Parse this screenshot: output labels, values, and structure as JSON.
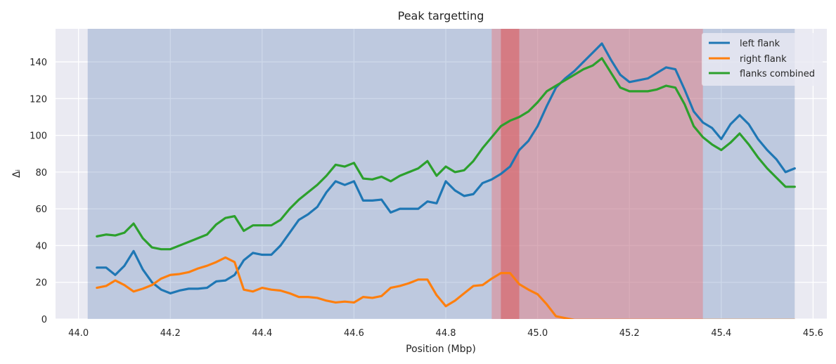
{
  "chart_data": {
    "type": "line",
    "title": "Peak targetting",
    "xlabel": "Position (Mbp)",
    "ylabel": "Δᵢ",
    "xlim": [
      43.95,
      45.63
    ],
    "ylim": [
      0,
      158
    ],
    "xticks": [
      44.0,
      44.2,
      44.4,
      44.6,
      44.8,
      45.0,
      45.2,
      45.4,
      45.6
    ],
    "xtick_labels": [
      "44.0",
      "44.2",
      "44.4",
      "44.6",
      "44.8",
      "45.0",
      "45.2",
      "45.4",
      "45.6"
    ],
    "yticks": [
      0,
      20,
      40,
      60,
      80,
      100,
      120,
      140
    ],
    "ytick_labels": [
      "0",
      "20",
      "40",
      "60",
      "80",
      "100",
      "120",
      "140"
    ],
    "grid": true,
    "legend_position": "top-right",
    "regions": [
      {
        "x0": 44.02,
        "x1": 45.56,
        "color": "#4c72b0",
        "opacity": 0.28
      },
      {
        "x0": 44.9,
        "x1": 45.36,
        "color": "#e8777c",
        "opacity": 0.45
      },
      {
        "x0": 44.92,
        "x1": 44.96,
        "color": "#d9595c",
        "opacity": 0.55
      }
    ],
    "x": [
      44.04,
      44.06,
      44.08,
      44.1,
      44.12,
      44.14,
      44.16,
      44.18,
      44.2,
      44.22,
      44.24,
      44.26,
      44.28,
      44.3,
      44.32,
      44.34,
      44.36,
      44.38,
      44.4,
      44.42,
      44.44,
      44.46,
      44.48,
      44.5,
      44.52,
      44.54,
      44.56,
      44.58,
      44.6,
      44.62,
      44.64,
      44.66,
      44.68,
      44.7,
      44.72,
      44.74,
      44.76,
      44.78,
      44.8,
      44.82,
      44.84,
      44.86,
      44.88,
      44.9,
      44.92,
      44.94,
      44.96,
      44.98,
      45.0,
      45.02,
      45.04,
      45.06,
      45.08,
      45.1,
      45.12,
      45.14,
      45.16,
      45.18,
      45.2,
      45.22,
      45.24,
      45.26,
      45.28,
      45.3,
      45.32,
      45.34,
      45.36,
      45.38,
      45.4,
      45.42,
      45.44,
      45.46,
      45.48,
      45.5,
      45.52,
      45.54,
      45.56
    ],
    "series": [
      {
        "name": "left flank",
        "color": "#1f77b4",
        "values": [
          28,
          28,
          24,
          29,
          37,
          27,
          20,
          16,
          14,
          15.5,
          16.5,
          16.5,
          17,
          20.5,
          21,
          24,
          32,
          36,
          35,
          35,
          40,
          47,
          54,
          57,
          61,
          69,
          75,
          73,
          75,
          64.5,
          64.5,
          65,
          58,
          60,
          60,
          60,
          64,
          63,
          75,
          70,
          67,
          68,
          74,
          76,
          79,
          83,
          92,
          97,
          105,
          116,
          126,
          131,
          135,
          140,
          145,
          150,
          141,
          133,
          129,
          130,
          131,
          134,
          137,
          136,
          125,
          113,
          107,
          104,
          98,
          106,
          111,
          106,
          98,
          92,
          87,
          80,
          82
        ]
      },
      {
        "name": "right flank",
        "color": "#ff7f0e",
        "values": [
          17,
          18,
          21,
          18.5,
          15,
          16.5,
          18.5,
          22,
          24,
          24.5,
          25.5,
          27.5,
          29,
          31,
          33.5,
          31,
          16,
          15,
          17,
          16,
          15.5,
          14,
          12,
          12,
          11.5,
          10,
          9,
          9.5,
          9,
          12,
          11.5,
          12.5,
          17,
          18,
          19.5,
          21.5,
          21.5,
          13,
          7,
          10,
          14,
          18,
          18.5,
          22,
          25,
          25,
          19,
          16,
          13.5,
          8,
          1.5,
          0.5,
          -0.5,
          -0.5,
          -0.5,
          -0.5,
          -0.5,
          -0.5,
          -0.5,
          -0.5,
          -0.5,
          -0.5,
          -0.5,
          -0.5,
          -0.5,
          -0.5,
          -0.5,
          -0.5,
          -0.5,
          -0.5,
          -0.5,
          -0.5,
          -0.5,
          -0.5,
          -0.5,
          -0.5,
          -0.5
        ]
      },
      {
        "name": "flanks combined",
        "color": "#2ca02c",
        "values": [
          45,
          46,
          45.5,
          47,
          52,
          44,
          39,
          38,
          38,
          40,
          42,
          44,
          46,
          51.5,
          55,
          56,
          48,
          51,
          51,
          51,
          54,
          60,
          65,
          69,
          73,
          78,
          84,
          83,
          85,
          76.5,
          76,
          77.5,
          75,
          78,
          80,
          82,
          86,
          78,
          83,
          80,
          81,
          86,
          93,
          99,
          105,
          108,
          110,
          113,
          118,
          124,
          127,
          130,
          133,
          136,
          138,
          142,
          134,
          126,
          124,
          124,
          124,
          125,
          127,
          126,
          117,
          105,
          99,
          95,
          92,
          96,
          101,
          95,
          88,
          82,
          77,
          72,
          72
        ]
      }
    ]
  }
}
